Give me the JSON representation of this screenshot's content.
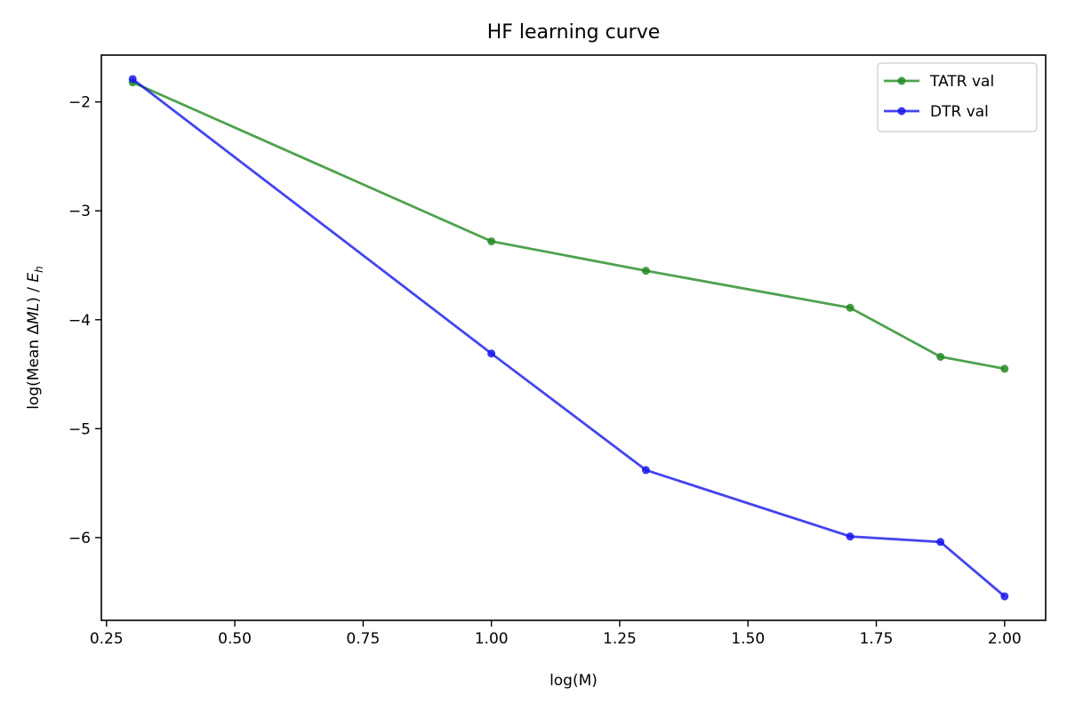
{
  "chart_data": {
    "type": "line",
    "title": "HF learning curve",
    "xlabel": "log(M)",
    "ylabel_parts": {
      "prefix": "log(Mean ",
      "delta": "Δ",
      "ml": "ML",
      "mid": ") / ",
      "e": "E",
      "sub": "h"
    },
    "xlim": [
      0.24,
      2.08
    ],
    "ylim": [
      -6.76,
      -1.57
    ],
    "xticks": [
      {
        "value": 0.25,
        "label": "0.25"
      },
      {
        "value": 0.5,
        "label": "0.50"
      },
      {
        "value": 0.75,
        "label": "0.75"
      },
      {
        "value": 1.0,
        "label": "1.00"
      },
      {
        "value": 1.25,
        "label": "1.25"
      },
      {
        "value": 1.5,
        "label": "1.50"
      },
      {
        "value": 1.75,
        "label": "1.75"
      },
      {
        "value": 2.0,
        "label": "2.00"
      }
    ],
    "yticks": [
      {
        "value": -2,
        "label": "−2"
      },
      {
        "value": -3,
        "label": "−3"
      },
      {
        "value": -4,
        "label": "−4"
      },
      {
        "value": -5,
        "label": "−5"
      },
      {
        "value": -6,
        "label": "−6"
      }
    ],
    "grid": false,
    "legend_position": "top-right",
    "x": [
      0.301,
      1.0,
      1.301,
      1.699,
      1.875,
      2.0
    ],
    "series": [
      {
        "name": "TATR val",
        "color": "#228B22",
        "values": [
          -1.82,
          -3.28,
          -3.55,
          -3.89,
          -4.34,
          -4.45
        ]
      },
      {
        "name": "DTR val",
        "color": "#1515EE",
        "values": [
          -1.79,
          -4.31,
          -5.38,
          -5.99,
          -6.04,
          -6.54
        ]
      }
    ]
  }
}
